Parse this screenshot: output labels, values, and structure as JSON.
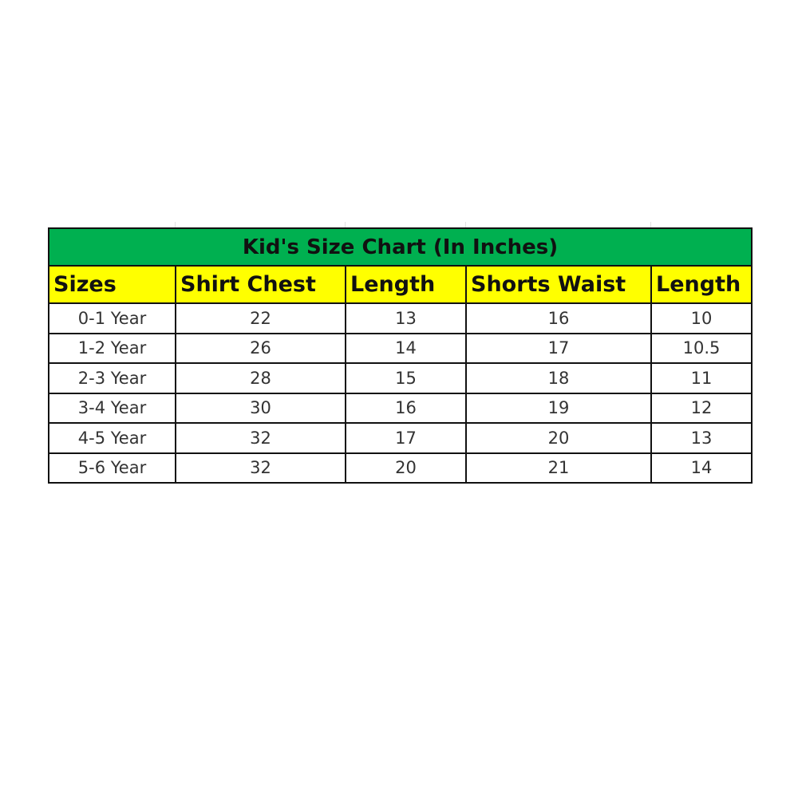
{
  "title": "Kid's Size Chart (In Inches)",
  "colors": {
    "title_bg": "#00b050",
    "header_bg": "#ffff00",
    "border": "#111111"
  },
  "headers": [
    "Sizes",
    "Shirt Chest",
    "Length",
    "Shorts Waist",
    "Length"
  ],
  "rows": [
    [
      "0-1 Year",
      "22",
      "13",
      "16",
      "10"
    ],
    [
      "1-2 Year",
      "26",
      "14",
      "17",
      "10.5"
    ],
    [
      "2-3 Year",
      "28",
      "15",
      "18",
      "11"
    ],
    [
      "3-4 Year",
      "30",
      "16",
      "19",
      "12"
    ],
    [
      "4-5 Year",
      "32",
      "17",
      "20",
      "13"
    ],
    [
      "5-6 Year",
      "32",
      "20",
      "21",
      "14"
    ]
  ]
}
